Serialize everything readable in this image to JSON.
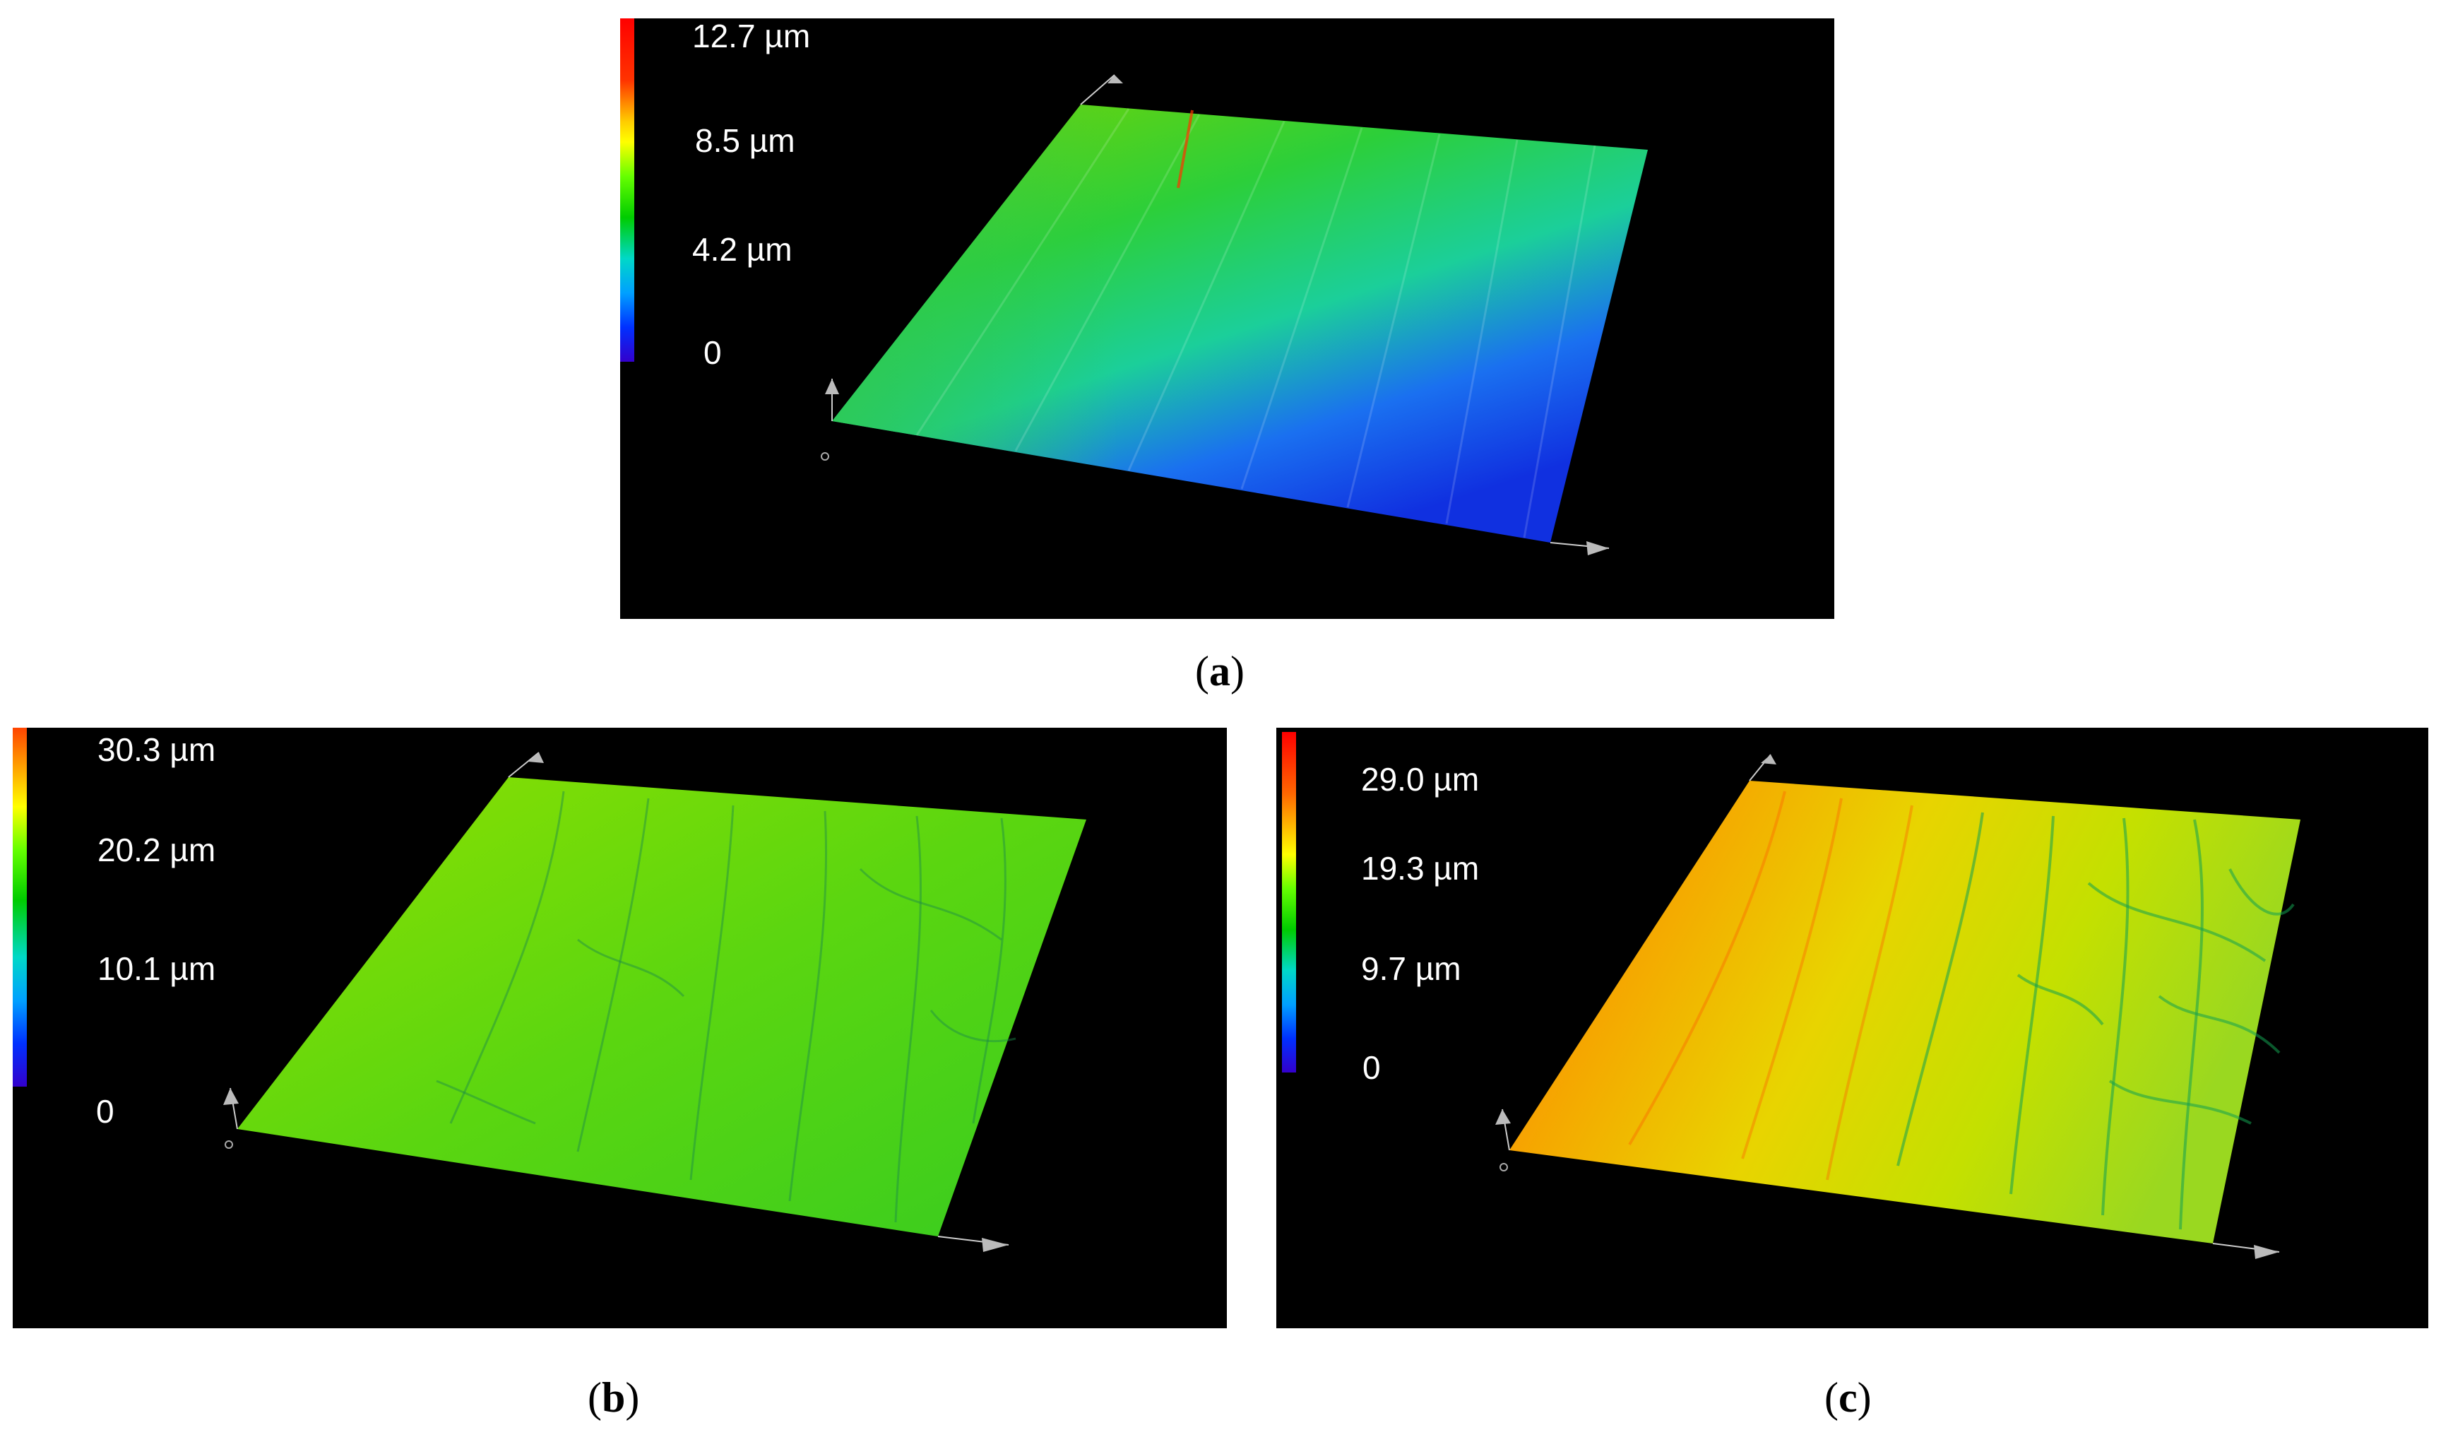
{
  "panels": {
    "a": {
      "caption_letter": "a",
      "scale_labels": [
        "12.7 µm",
        "8.5 µm",
        "4.2 µm",
        "0"
      ]
    },
    "b": {
      "caption_letter": "b",
      "scale_labels": [
        "30.3 µm",
        "20.2 µm",
        "10.1 µm",
        "0"
      ]
    },
    "c": {
      "caption_letter": "c",
      "scale_labels": [
        "29.0 µm",
        "19.3 µm",
        "9.7 µm",
        "0"
      ]
    }
  },
  "colors": {
    "background": "#000000",
    "page": "#ffffff",
    "scale_top": "#ff0000",
    "scale_high": "#ffcc00",
    "scale_mid": "#00cc00",
    "scale_low": "#00e0ff",
    "scale_bottom": "#3300cc"
  }
}
